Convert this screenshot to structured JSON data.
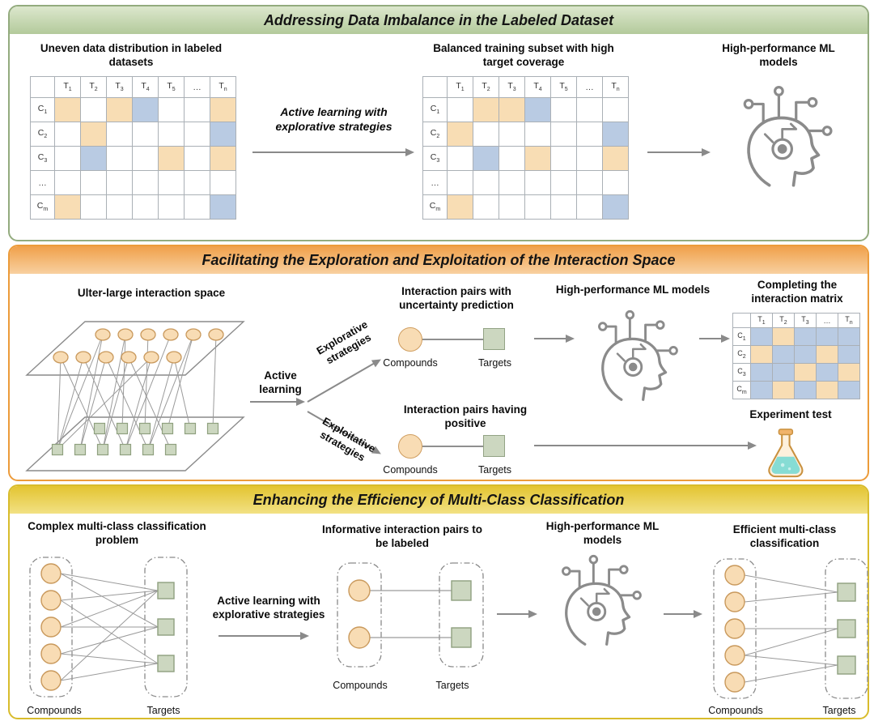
{
  "labels": {
    "compounds": "Compounds",
    "targets": "Targets"
  },
  "colors": {
    "orange_cell": "#f8ddb4",
    "blue_cell": "#b9cbe3",
    "panel_green": "#93ab7e",
    "panel_orange": "#ec9b3a",
    "panel_yellow": "#d8bc2c"
  },
  "panel1": {
    "title": "Addressing Data Imbalance in the Labeled Dataset",
    "left_caption": "Uneven data distribution in labeled datasets",
    "arrow_label": "Active learning with explorative strategies",
    "right_caption": "Balanced training subset with high target coverage",
    "ml_caption": "High-performance ML models",
    "left_matrix": {
      "col_headers": [
        "",
        "T1",
        "T2",
        "T3",
        "T4",
        "T5",
        "…",
        "Tn"
      ],
      "rows": [
        "C1",
        "C2",
        "C3",
        "…",
        "Cm"
      ],
      "cells": [
        [
          "o",
          "",
          "o",
          "b",
          "",
          "",
          "o"
        ],
        [
          "",
          "o",
          "",
          "",
          "",
          "",
          "b"
        ],
        [
          "",
          "b",
          "",
          "",
          "o",
          "",
          "o"
        ],
        [
          "",
          "",
          "",
          "",
          "",
          "",
          ""
        ],
        [
          "o",
          "",
          "",
          "",
          "",
          "",
          "b"
        ]
      ]
    },
    "right_matrix": {
      "col_headers": [
        "",
        "T1",
        "T2",
        "T3",
        "T4",
        "T5",
        "…",
        "Tn"
      ],
      "rows": [
        "C1",
        "C2",
        "C3",
        "…",
        "Cm"
      ],
      "cells": [
        [
          "",
          "o",
          "o",
          "b",
          "",
          "",
          ""
        ],
        [
          "o",
          "",
          "",
          "",
          "",
          "",
          "b"
        ],
        [
          "",
          "b",
          "",
          "o",
          "",
          "",
          "o"
        ],
        [
          "",
          "",
          "",
          "",
          "",
          "",
          ""
        ],
        [
          "o",
          "",
          "",
          "",
          "",
          "",
          "b"
        ]
      ]
    }
  },
  "panel2": {
    "title": "Facilitating the Exploration and Exploitation of the Interaction Space",
    "space_caption": "Ulter-large interaction space",
    "active_learning": "Active learning",
    "explorative": "Explorative strategies",
    "exploitative": "Exploitative strategies",
    "uncertainty_caption": "Interaction pairs with uncertainty prediction",
    "positive_caption": "Interaction pairs having positive",
    "ml_caption": "High-performance ML models",
    "matrix_caption": "Completing the interaction matrix",
    "experiment_caption": "Experiment test",
    "matrix": {
      "col_headers": [
        "",
        "T1",
        "T2",
        "T3",
        "…",
        "Tn"
      ],
      "rows": [
        "C1",
        "C2",
        "C3",
        "Cm"
      ],
      "cells": [
        [
          "b",
          "o",
          "b",
          "b",
          "b"
        ],
        [
          "o",
          "b",
          "b",
          "o",
          "b"
        ],
        [
          "b",
          "b",
          "o",
          "b",
          "o"
        ],
        [
          "b",
          "o",
          "b",
          "o",
          "b"
        ]
      ]
    }
  },
  "panel3": {
    "title": "Enhancing the Efficiency of Multi-Class Classification",
    "left_caption": "Complex multi-class classification problem",
    "arrow_label": "Active learning with explorative strategies",
    "mid_caption": "Informative interaction pairs to be labeled",
    "ml_caption": "High-performance ML models",
    "right_caption": "Efficient multi-class classification"
  }
}
